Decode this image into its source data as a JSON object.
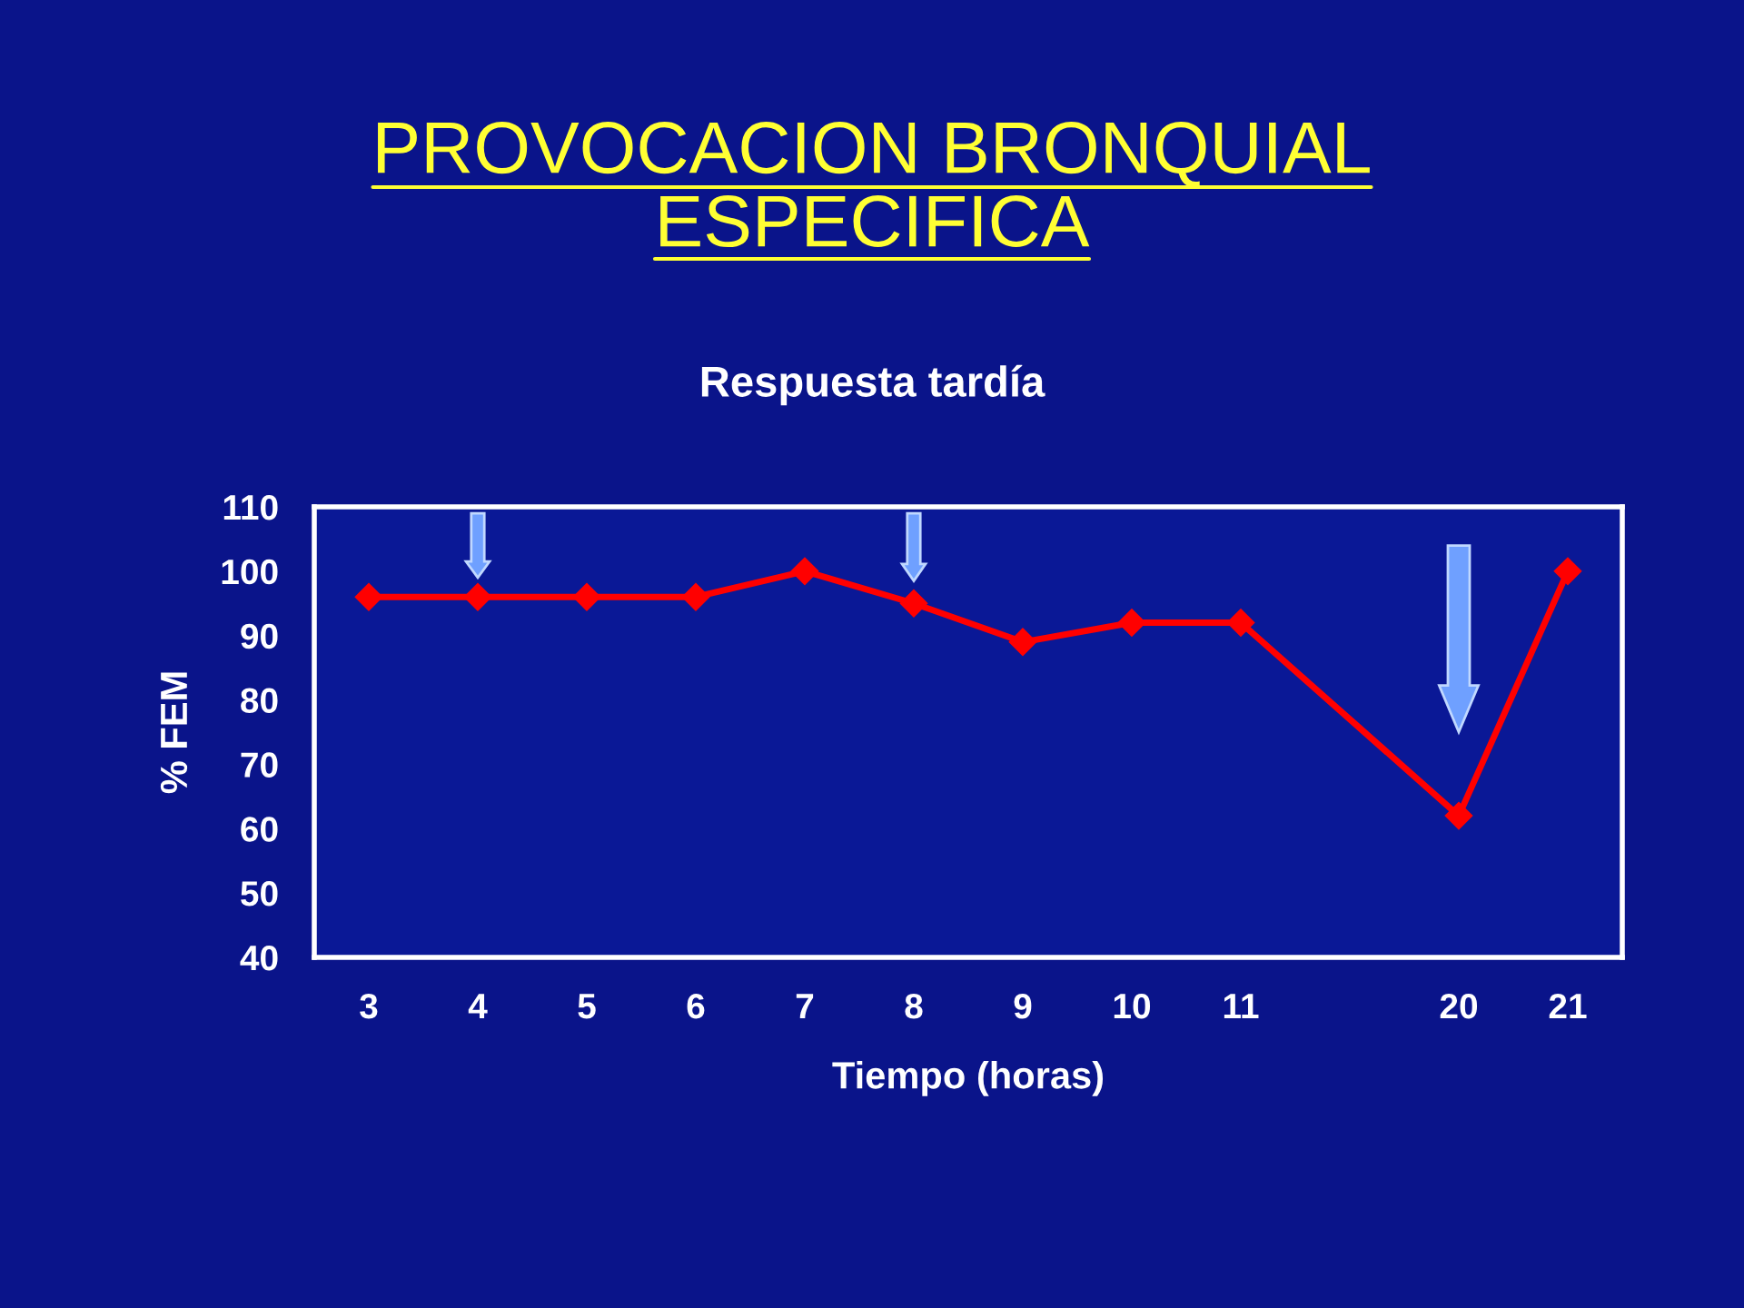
{
  "chart_data": {
    "type": "line",
    "title": "PROVOCACION BRONQUIAL\nESPECIFICA",
    "subtitle": "Respuesta tardía",
    "xlabel": "Tiempo (horas)",
    "ylabel": "% FEM",
    "categories": [
      "3",
      "4",
      "5",
      "6",
      "7",
      "8",
      "9",
      "10",
      "11",
      null,
      "20",
      "21"
    ],
    "series": [
      {
        "color": "#ff0000",
        "values": [
          96,
          96,
          96,
          96,
          100,
          95,
          89,
          92,
          92,
          null,
          62,
          100
        ]
      }
    ],
    "ylim": [
      40,
      110
    ],
    "yticks": [
      40,
      50,
      60,
      70,
      80,
      90,
      100,
      110
    ],
    "grid": false,
    "legend": false,
    "marker": "diamond",
    "line_style": "solid"
  }
}
